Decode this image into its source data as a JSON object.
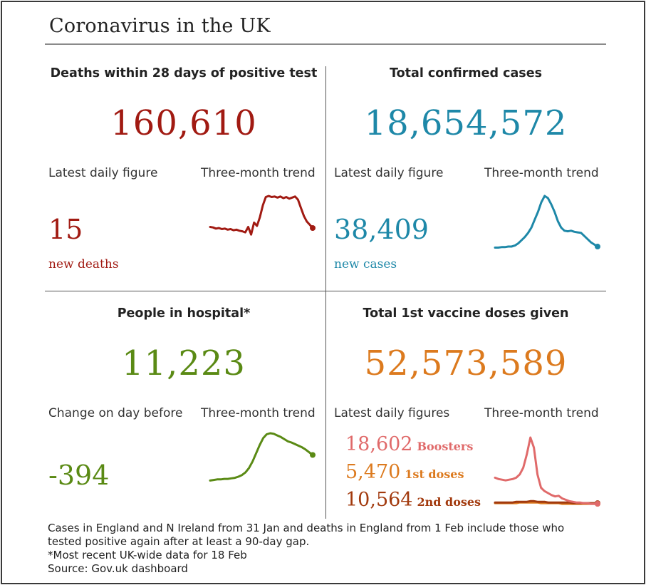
{
  "title": "Coronavirus in the UK",
  "colors": {
    "deaths": "#a11a12",
    "cases": "#1e88a8",
    "hospital": "#5a8a14",
    "vaccine": "#dc7a1e",
    "boosters": "#e06a6a",
    "first_doses": "#dc7a1e",
    "second_doses": "#a23a0e"
  },
  "chart_data": [
    {
      "type": "line",
      "title": "Deaths within 28 days of positive test",
      "total": "160,610",
      "latest_label": "Latest daily figure",
      "trend_label": "Three-month trend",
      "latest_value": "15",
      "latest_sublabel": "new deaths",
      "series": [
        {
          "name": "Deaths",
          "values": [
            40,
            39,
            37,
            38,
            36,
            37,
            35,
            36,
            34,
            35,
            33,
            32,
            30,
            40,
            26,
            48,
            42,
            58,
            80,
            95,
            97,
            95,
            96,
            94,
            96,
            93,
            95,
            92,
            94,
            96,
            90,
            75,
            60,
            50,
            44,
            38
          ]
        }
      ]
    },
    {
      "type": "line",
      "title": "Total confirmed cases",
      "total": "18,654,572",
      "latest_label": "Latest daily figure",
      "trend_label": "Three-month trend",
      "latest_value": "38,409",
      "latest_sublabel": "new cases",
      "series": [
        {
          "name": "Cases",
          "values": [
            2,
            2,
            3,
            3,
            4,
            4,
            6,
            10,
            16,
            22,
            30,
            40,
            55,
            70,
            88,
            100,
            96,
            84,
            70,
            52,
            40,
            34,
            33,
            34,
            32,
            31,
            30,
            24,
            18,
            12,
            8,
            4
          ]
        }
      ]
    },
    {
      "type": "line",
      "title": "People in hospital*",
      "total": "11,223",
      "latest_label": "Change on day before",
      "trend_label": "Three-month trend",
      "latest_value": "-394",
      "series": [
        {
          "name": "Hospital",
          "values": [
            10,
            11,
            12,
            12,
            13,
            13,
            14,
            15,
            17,
            20,
            25,
            33,
            45,
            60,
            75,
            88,
            95,
            97,
            96,
            93,
            90,
            86,
            82,
            80,
            77,
            74,
            71,
            67,
            62,
            57
          ]
        }
      ]
    },
    {
      "type": "line",
      "title": "Total 1st vaccine doses given",
      "total": "52,573,589",
      "latest_label": "Latest daily figures",
      "trend_label": "Three-month trend",
      "latest_values": [
        {
          "value": "18,602",
          "label": "Boosters"
        },
        {
          "value": "5,470",
          "label": "1st doses"
        },
        {
          "value": "10,564",
          "label": "2nd doses"
        }
      ],
      "series": [
        {
          "name": "Boosters",
          "values": [
            40,
            38,
            37,
            36,
            37,
            38,
            40,
            45,
            55,
            75,
            100,
            85,
            45,
            25,
            20,
            17,
            14,
            12,
            13,
            9,
            7,
            5,
            4,
            3,
            3,
            2,
            2,
            1,
            1,
            1
          ]
        },
        {
          "name": "1st doses",
          "values": [
            2,
            2,
            2,
            2,
            2,
            2,
            2,
            3,
            3,
            3,
            3,
            3,
            3,
            2,
            2,
            2,
            2,
            2,
            2,
            1,
            1,
            1,
            1,
            1,
            1,
            1,
            1,
            1,
            1,
            1
          ]
        },
        {
          "name": "2nd doses",
          "values": [
            3,
            3,
            3,
            3,
            3,
            3,
            4,
            4,
            4,
            4,
            5,
            5,
            4,
            4,
            4,
            3,
            3,
            3,
            3,
            3,
            3,
            3,
            2,
            2,
            2,
            2,
            2,
            2,
            2,
            2
          ]
        }
      ]
    }
  ],
  "footnotes": [
    "Cases in England and N Ireland from 31 Jan and deaths in England from 1 Feb include those who",
    "tested positive again after at least a 90-day gap.",
    "*Most recent UK-wide data for 18 Feb",
    "Source: Gov.uk dashboard"
  ]
}
